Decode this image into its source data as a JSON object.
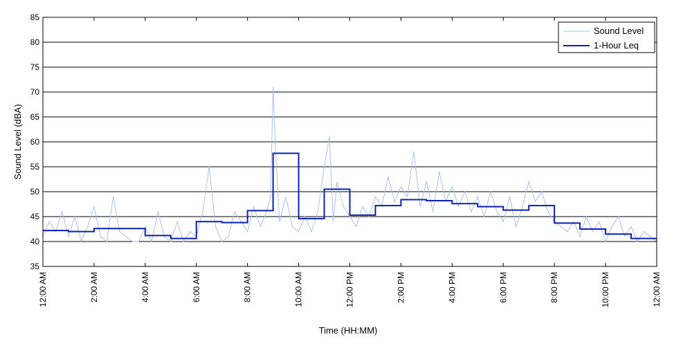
{
  "chart_data": {
    "type": "line",
    "title": "",
    "xlabel": "Time (HH:MM)",
    "ylabel": "Sound Level (dBA)",
    "xlim": [
      0,
      24
    ],
    "ylim": [
      35,
      85
    ],
    "y_ticks": [
      35,
      40,
      45,
      50,
      55,
      60,
      65,
      70,
      75,
      80,
      85
    ],
    "x_tick_labels": [
      "12:00 AM",
      "2:00 AM",
      "4:00 AM",
      "6:00 AM",
      "8:00 AM",
      "10:00 AM",
      "12:00 PM",
      "2:00 PM",
      "4:00 PM",
      "6:00 PM",
      "8:00 PM",
      "10:00 PM",
      "12:00 AM"
    ],
    "grid": "horizontal",
    "legend": "top-right",
    "series": [
      {
        "name": "Sound Level",
        "color": "#a9c1ee",
        "style": "thin-line",
        "x": [
          0.0,
          0.25,
          0.5,
          0.75,
          1.0,
          1.25,
          1.5,
          1.75,
          2.0,
          2.25,
          2.5,
          2.75,
          3.0,
          3.25,
          3.5,
          3.75,
          4.0,
          4.25,
          4.5,
          4.75,
          5.0,
          5.25,
          5.5,
          5.75,
          6.0,
          6.25,
          6.5,
          6.75,
          7.0,
          7.25,
          7.5,
          7.75,
          8.0,
          8.25,
          8.5,
          8.75,
          8.9,
          9.0,
          9.1,
          9.25,
          9.5,
          9.75,
          10.0,
          10.25,
          10.5,
          10.75,
          11.0,
          11.2,
          11.35,
          11.5,
          11.75,
          12.0,
          12.25,
          12.5,
          12.75,
          13.0,
          13.25,
          13.5,
          13.75,
          14.0,
          14.25,
          14.5,
          14.75,
          15.0,
          15.25,
          15.5,
          15.75,
          16.0,
          16.25,
          16.5,
          16.75,
          17.0,
          17.25,
          17.5,
          17.75,
          18.0,
          18.25,
          18.5,
          18.75,
          19.0,
          19.25,
          19.5,
          19.75,
          20.0,
          20.25,
          20.5,
          20.75,
          21.0,
          21.25,
          21.5,
          21.75,
          22.0,
          22.25,
          22.5,
          22.75,
          23.0,
          23.25,
          23.5,
          23.75,
          24.0
        ],
        "values": [
          41,
          44,
          42,
          46,
          41,
          45,
          40,
          43,
          47,
          41,
          40,
          49,
          42,
          41,
          40,
          40,
          43,
          40,
          46,
          41,
          40,
          44,
          40,
          42,
          41,
          46,
          55,
          43,
          40,
          41,
          46,
          44,
          42,
          47,
          43,
          46,
          49,
          71,
          58,
          44,
          49,
          43,
          42,
          45,
          42,
          46,
          55,
          61,
          44,
          52,
          47,
          45,
          43,
          47,
          45,
          49,
          47,
          53,
          48,
          51,
          49,
          58,
          47,
          52,
          46,
          54,
          48,
          51,
          47,
          50,
          46,
          49,
          45,
          50,
          46,
          44,
          49,
          43,
          47,
          52,
          48,
          50,
          46,
          44,
          43,
          42,
          44,
          41,
          45,
          42,
          44,
          40,
          43,
          45,
          41,
          43,
          40,
          42,
          41,
          40
        ]
      },
      {
        "name": "1-Hour Leq",
        "color": "#0a1fb5",
        "style": "step",
        "x": [
          0,
          1,
          2,
          3,
          4,
          5,
          6,
          7,
          8,
          9,
          10,
          11,
          12,
          13,
          14,
          15,
          16,
          17,
          18,
          19,
          20,
          21,
          22,
          23,
          24
        ],
        "values": [
          42.2,
          42.0,
          42.6,
          42.6,
          41.2,
          40.6,
          44.0,
          43.8,
          46.2,
          57.7,
          44.6,
          50.5,
          45.3,
          47.2,
          48.4,
          48.2,
          47.6,
          47.0,
          46.3,
          47.2,
          43.7,
          42.5,
          41.5,
          40.6,
          40.6
        ]
      }
    ]
  }
}
